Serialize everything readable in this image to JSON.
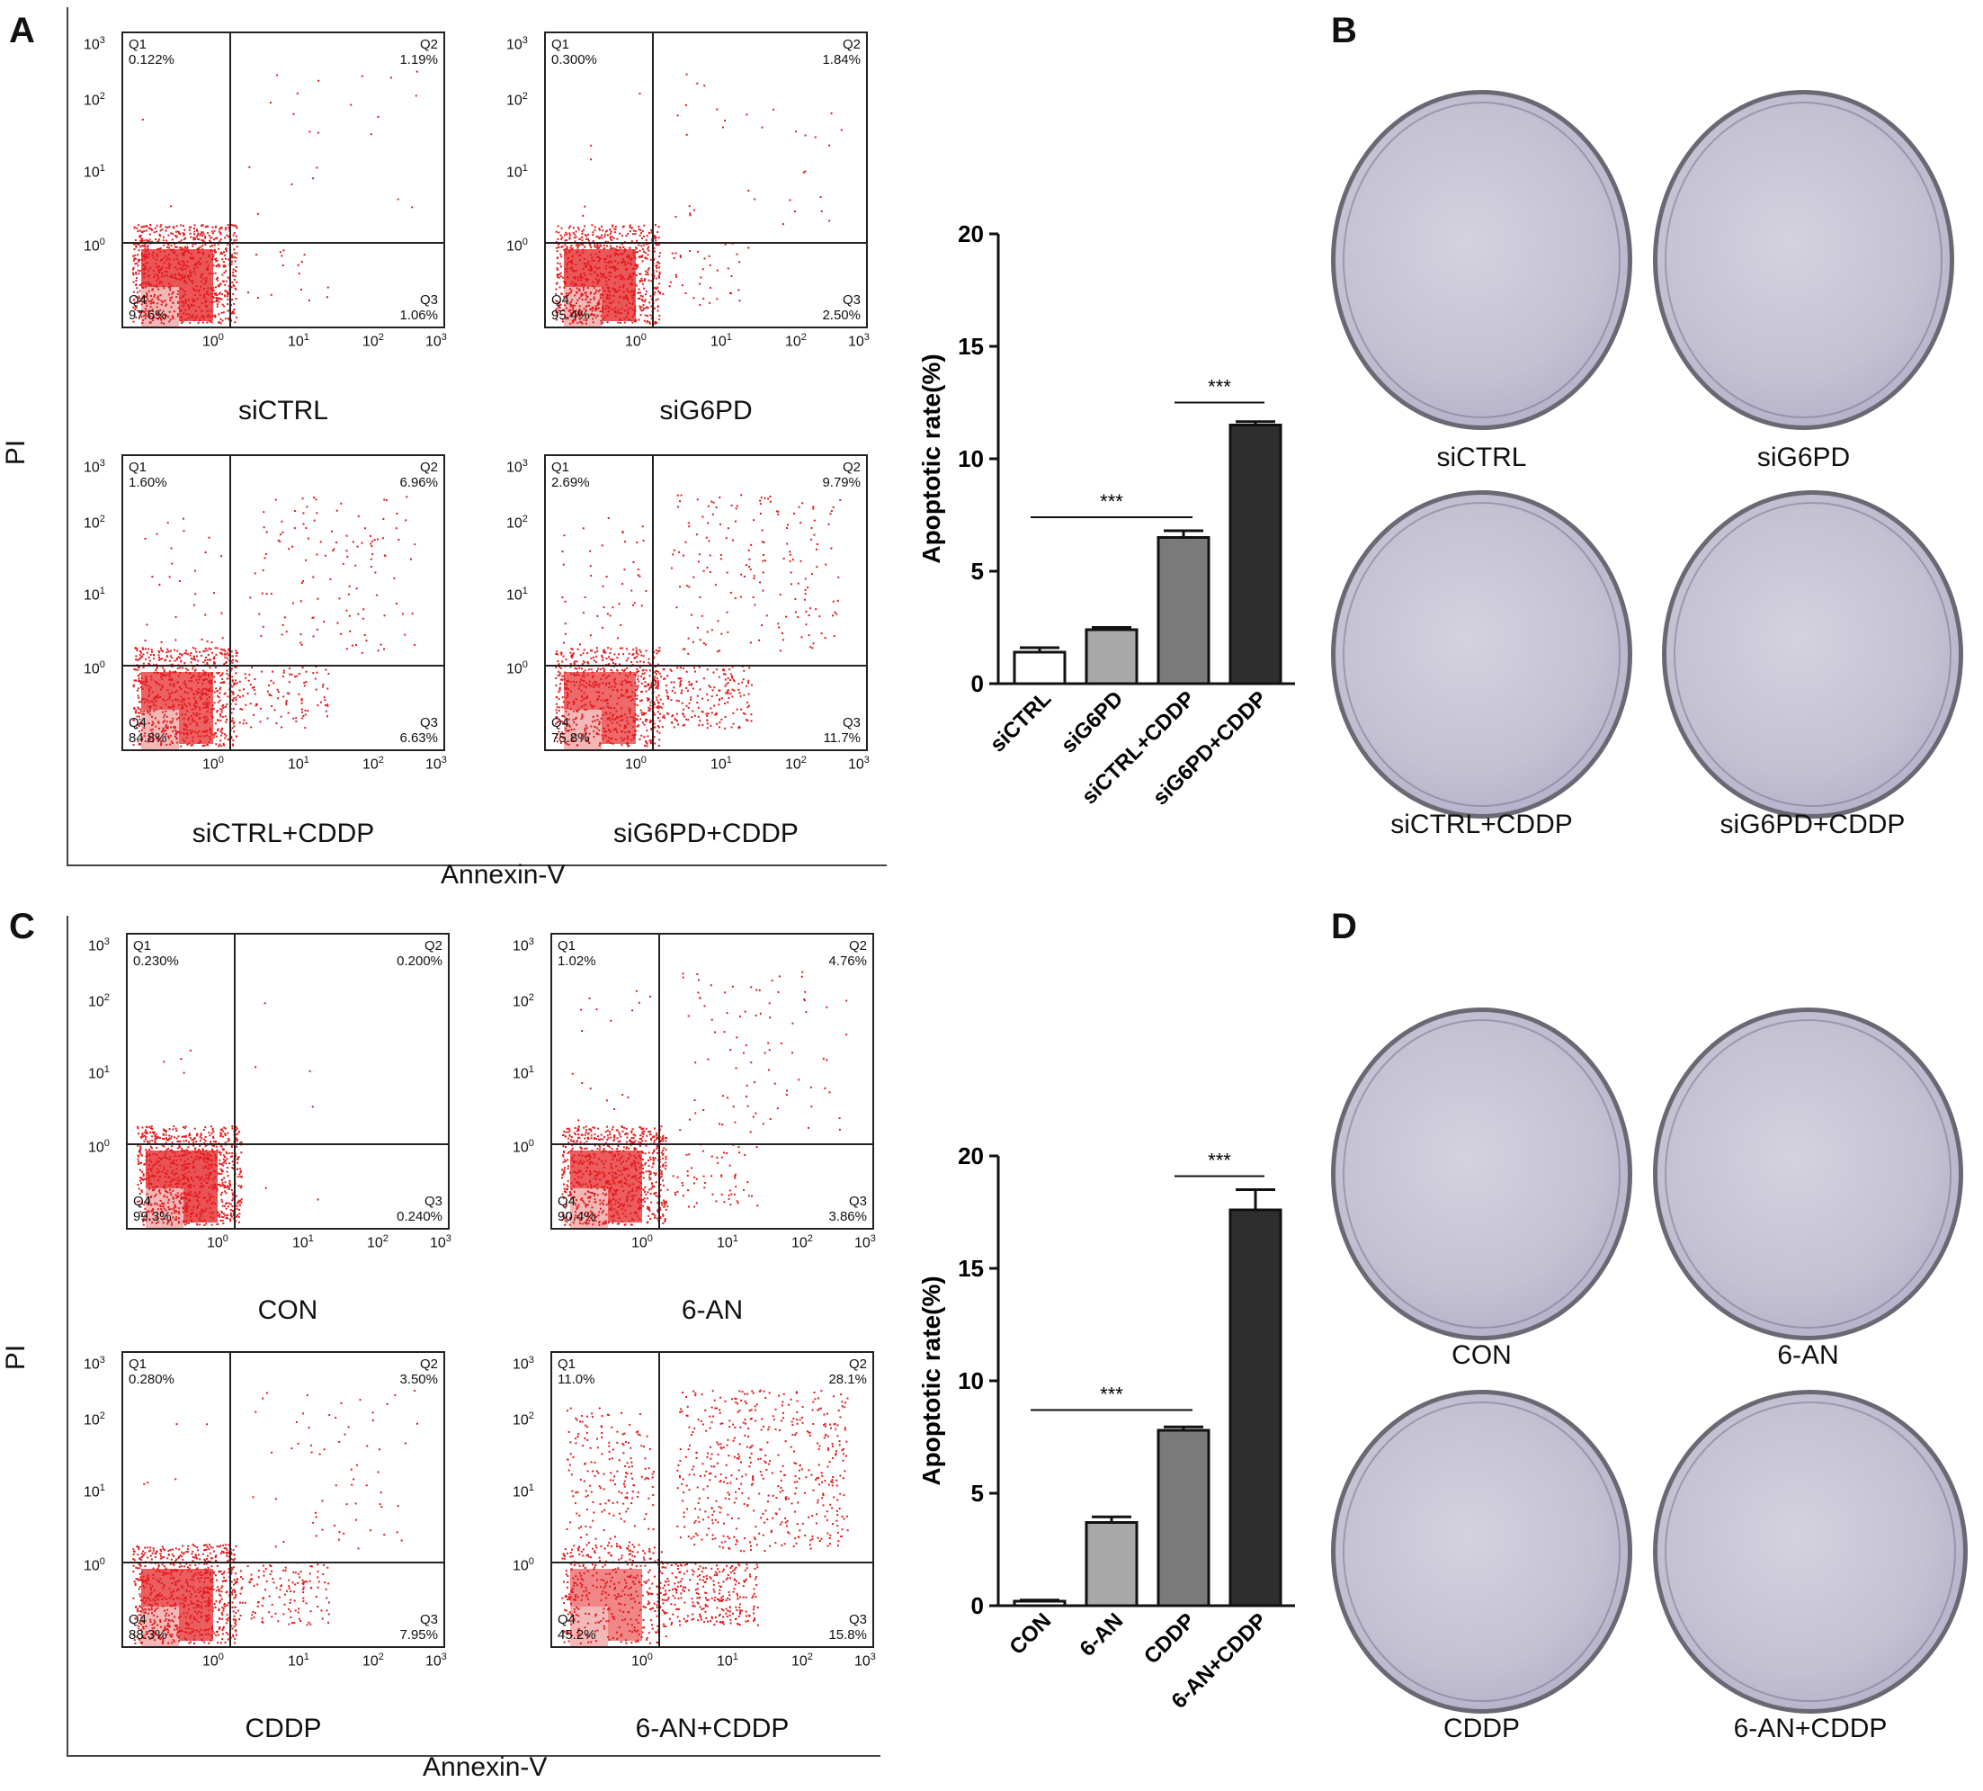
{
  "panels": {
    "A": {
      "letter": "A",
      "x_axis_label": "Annexin-V",
      "y_axis_label": "PI",
      "tick_labels": {
        "x": [
          "10",
          "10",
          "10",
          "10"
        ],
        "x_exp": [
          "0",
          "1",
          "2",
          "3"
        ],
        "y": [
          "10",
          "10",
          "10",
          "10"
        ],
        "y_exp": [
          "0",
          "1",
          "2",
          "3"
        ]
      },
      "plots": [
        {
          "caption": "siCTRL",
          "q1_name": "Q1",
          "q1": "0.122%",
          "q2_name": "Q2",
          "q2": "1.19%",
          "q3_name": "Q3",
          "q3": "1.06%",
          "q4_name": "Q4",
          "q4": "97.6%"
        },
        {
          "caption": "siG6PD",
          "q1_name": "Q1",
          "q1": "0.300%",
          "q2_name": "Q2",
          "q2": "1.84%",
          "q3_name": "Q3",
          "q3": "2.50%",
          "q4_name": "Q4",
          "q4": "95.4%"
        },
        {
          "caption": "siCTRL+CDDP",
          "q1_name": "Q1",
          "q1": "1.60%",
          "q2_name": "Q2",
          "q2": "6.96%",
          "q3_name": "Q3",
          "q3": "6.63%",
          "q4_name": "Q4",
          "q4": "84.8%"
        },
        {
          "caption": "siG6PD+CDDP",
          "q1_name": "Q1",
          "q1": "2.69%",
          "q2_name": "Q2",
          "q2": "9.79%",
          "q3_name": "Q3",
          "q3": "11.7%",
          "q4_name": "Q4",
          "q4": "75.8%"
        }
      ]
    },
    "B": {
      "letter": "B",
      "captions": [
        "siCTRL",
        "siG6PD",
        "siCTRL+CDDP",
        "siG6PD+CDDP"
      ]
    },
    "C": {
      "letter": "C",
      "x_axis_label": "Annexin-V",
      "y_axis_label": "PI",
      "plots": [
        {
          "caption": "CON",
          "q1_name": "Q1",
          "q1": "0.230%",
          "q2_name": "Q2",
          "q2": "0.200%",
          "q3_name": "Q3",
          "q3": "0.240%",
          "q4_name": "Q4",
          "q4": "99.3%"
        },
        {
          "caption": "6-AN",
          "q1_name": "Q1",
          "q1": "1.02%",
          "q2_name": "Q2",
          "q2": "4.76%",
          "q3_name": "Q3",
          "q3": "3.86%",
          "q4_name": "Q4",
          "q4": "90.4%"
        },
        {
          "caption": "CDDP",
          "q1_name": "Q1",
          "q1": "0.280%",
          "q2_name": "Q2",
          "q2": "3.50%",
          "q3_name": "Q3",
          "q3": "7.95%",
          "q4_name": "Q4",
          "q4": "88.3%"
        },
        {
          "caption": "6-AN+CDDP",
          "q1_name": "Q1",
          "q1": "11.0%",
          "q2_name": "Q2",
          "q2": "28.1%",
          "q3_name": "Q3",
          "q3": "15.8%",
          "q4_name": "Q4",
          "q4": "45.2%"
        }
      ]
    },
    "D": {
      "letter": "D",
      "captions": [
        "CON",
        "6-AN",
        "CDDP",
        "6-AN+CDDP"
      ]
    }
  },
  "chart_data": [
    {
      "type": "bar",
      "panel": "A",
      "categories": [
        "siCTRL",
        "siG6PD",
        "siCTRL+CDDP",
        "siG6PD+CDDP"
      ],
      "values": [
        1.4,
        2.4,
        6.5,
        11.5
      ],
      "errors": [
        0.2,
        0.1,
        0.3,
        0.15
      ],
      "colors": [
        "#ffffff",
        "#a8a8a8",
        "#7a7a7a",
        "#2e2e2e"
      ],
      "ylabel": "Apoptotic rate(%)",
      "ylim": [
        0,
        20
      ],
      "yticks": [
        0,
        5,
        10,
        15,
        20
      ],
      "annotations": [
        {
          "text": "***",
          "from": 0,
          "to": 2,
          "y": 7.4
        },
        {
          "text": "***",
          "from": 2,
          "to": 3,
          "y": 12.5
        }
      ]
    },
    {
      "type": "bar",
      "panel": "C",
      "categories": [
        "CON",
        "6-AN",
        "CDDP",
        "6-AN+CDDP"
      ],
      "values": [
        0.2,
        3.7,
        7.8,
        17.6
      ],
      "errors": [
        0.05,
        0.25,
        0.15,
        0.9
      ],
      "colors": [
        "#ffffff",
        "#a8a8a8",
        "#7a7a7a",
        "#2e2e2e"
      ],
      "ylabel": "Apoptotic rate(%)",
      "ylim": [
        0,
        20
      ],
      "yticks": [
        0,
        5,
        10,
        15,
        20
      ],
      "annotations": [
        {
          "text": "***",
          "from": 0,
          "to": 2,
          "y": 8.7
        },
        {
          "text": "***",
          "from": 2,
          "to": 3,
          "y": 19.1
        }
      ]
    }
  ]
}
